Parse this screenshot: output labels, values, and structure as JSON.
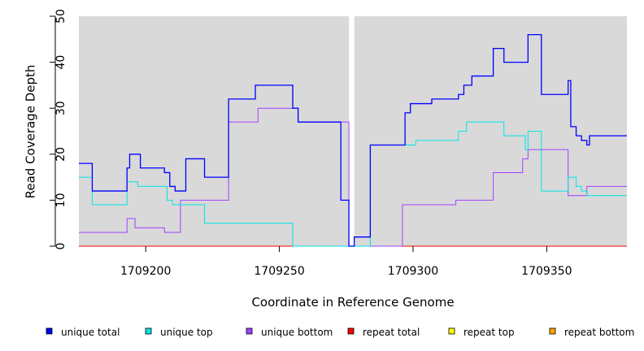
{
  "chart_data": {
    "type": "line",
    "xlabel": "Coordinate in Reference Genome",
    "ylabel": "Read Coverage Depth",
    "xlim": [
      1709175,
      1709380
    ],
    "ylim": [
      0,
      50
    ],
    "x_ticks": [
      "1709200",
      "1709250",
      "1709300",
      "1709350"
    ],
    "y_ticks": [
      "0",
      "10",
      "20",
      "30",
      "40",
      "50"
    ],
    "gap": [
      1709276,
      1709278
    ],
    "legend_position": "bottom",
    "colors": {
      "panel_bg": "#d9d9d9",
      "unique_total": "#0000ff",
      "unique_top": "#00e5e5",
      "unique_bottom": "#a040ff",
      "repeat_total": "#ff0000",
      "repeat_top": "#ffff00",
      "repeat_bottom": "#ffa500"
    },
    "series": [
      {
        "name": "unique total",
        "color": "#0000ff",
        "x": [
          1709175,
          1709180,
          1709193,
          1709194,
          1709198,
          1709207,
          1709209,
          1709211,
          1709215,
          1709222,
          1709231,
          1709241,
          1709255,
          1709257,
          1709273,
          1709276,
          1709278,
          1709284,
          1709296,
          1709297,
          1709299,
          1709301,
          1709307,
          1709317,
          1709319,
          1709322,
          1709330,
          1709334,
          1709343,
          1709348,
          1709358,
          1709359,
          1709361,
          1709363,
          1709365,
          1709366,
          1709380
        ],
        "y": [
          18,
          12,
          17,
          20,
          17,
          16,
          13,
          12,
          19,
          15,
          32,
          35,
          30,
          27,
          10,
          0,
          2,
          22,
          22,
          29,
          31,
          31,
          32,
          33,
          35,
          37,
          43,
          40,
          46,
          33,
          36,
          26,
          24,
          23,
          22,
          24,
          24
        ]
      },
      {
        "name": "unique top",
        "color": "#00e5e5",
        "x": [
          1709175,
          1709180,
          1709193,
          1709197,
          1709208,
          1709210,
          1709222,
          1709236,
          1709255,
          1709276,
          1709278,
          1709284,
          1709301,
          1709317,
          1709320,
          1709334,
          1709342,
          1709343,
          1709348,
          1709358,
          1709361,
          1709363,
          1709365,
          1709380
        ],
        "y": [
          15,
          9,
          14,
          13,
          10,
          9,
          5,
          5,
          0,
          0,
          0,
          22,
          23,
          25,
          27,
          24,
          21,
          25,
          12,
          15,
          13,
          12,
          11,
          11
        ]
      },
      {
        "name": "unique bottom",
        "color": "#a040ff",
        "x": [
          1709175,
          1709193,
          1709196,
          1709207,
          1709213,
          1709222,
          1709231,
          1709242,
          1709257,
          1709276,
          1709278,
          1709294,
          1709296,
          1709302,
          1709316,
          1709330,
          1709341,
          1709343,
          1709358,
          1709365,
          1709380
        ],
        "y": [
          3,
          6,
          4,
          3,
          10,
          10,
          27,
          30,
          27,
          0,
          0,
          0,
          9,
          9,
          10,
          16,
          19,
          21,
          11,
          13,
          13
        ]
      },
      {
        "name": "repeat total",
        "color": "#ff0000",
        "x": [
          1709175,
          1709380
        ],
        "y": [
          0,
          0
        ]
      },
      {
        "name": "repeat top",
        "color": "#ffff00",
        "x": [
          1709175,
          1709380
        ],
        "y": [
          0,
          0
        ]
      },
      {
        "name": "repeat bottom",
        "color": "#ffa500",
        "x": [
          1709175,
          1709380
        ],
        "y": [
          0,
          0
        ]
      }
    ]
  }
}
